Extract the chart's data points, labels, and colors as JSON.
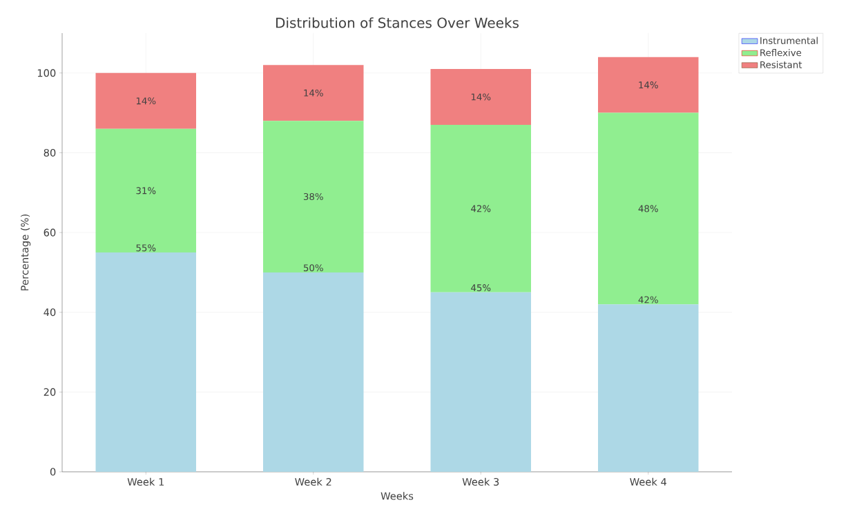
{
  "chart_data": {
    "type": "bar",
    "title": "Distribution of Stances Over Weeks",
    "xlabel": "Weeks",
    "ylabel": "Percentage (%)",
    "categories": [
      "Week 1",
      "Week 2",
      "Week 3",
      "Week 4"
    ],
    "stacked": true,
    "series": [
      {
        "name": "Instrumental",
        "color": "#add8e6",
        "values": [
          55,
          50,
          45,
          42
        ],
        "value_labels": [
          "55%",
          "50%",
          "45%",
          "42%"
        ]
      },
      {
        "name": "Reflexive",
        "color": "#90ee90",
        "values": [
          31,
          38,
          42,
          48
        ],
        "value_labels": [
          "31%",
          "38%",
          "42%",
          "48%"
        ]
      },
      {
        "name": "Resistant",
        "color": "#f08080",
        "values": [
          14,
          14,
          14,
          14
        ],
        "value_labels": [
          "14%",
          "14%",
          "14%",
          "14%"
        ]
      }
    ],
    "ylim": [
      0,
      110
    ],
    "yticks": [
      0,
      20,
      40,
      60,
      80,
      100
    ],
    "grid": true,
    "legend": "top right"
  }
}
